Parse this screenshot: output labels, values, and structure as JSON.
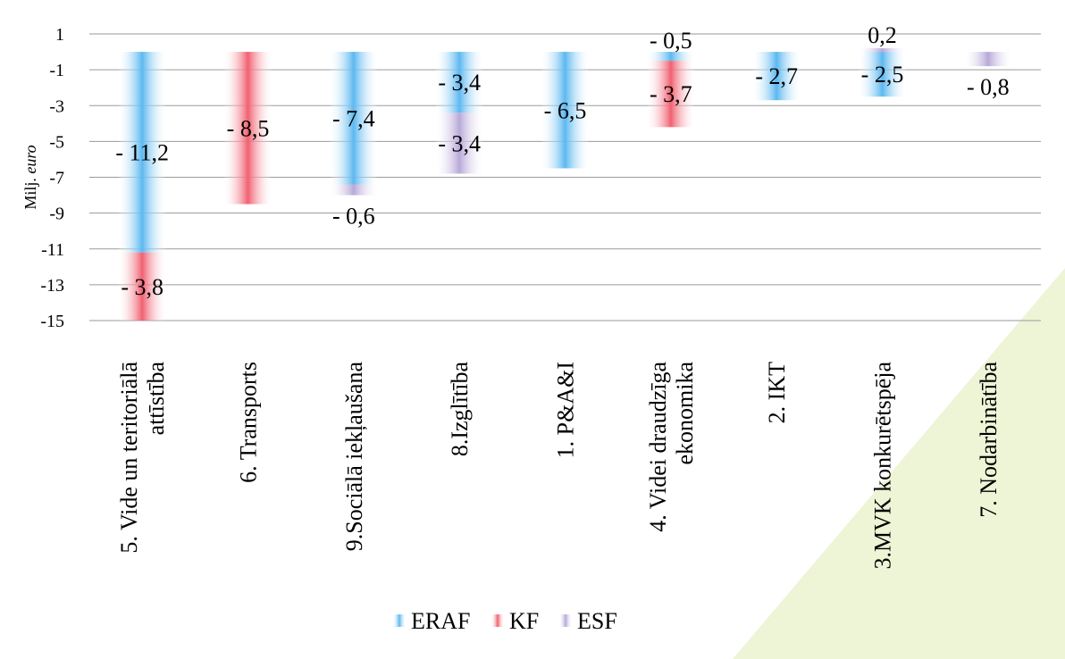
{
  "chart_data": {
    "type": "bar",
    "stacked": true,
    "title": "",
    "ylabel": "Milj.",
    "ylabel_italic": "euro",
    "ylim": [
      -15,
      1
    ],
    "yticks": [
      1,
      -1,
      -3,
      -5,
      -7,
      -9,
      -11,
      -13,
      -15
    ],
    "grid": true,
    "legend_position": "bottom",
    "categories": [
      [
        "5. Vide un teritoriālā",
        "attīstība"
      ],
      [
        "6. Transports"
      ],
      [
        "9.Sociālā iekļaušana"
      ],
      [
        "8.Izglītība"
      ],
      [
        "1. P&A&I"
      ],
      [
        "4. Videi draudzīga",
        "ekonomika"
      ],
      [
        "2. IKT"
      ],
      [
        "3.MVK konkurētspēja"
      ],
      [
        "7. Nodarbinātība"
      ]
    ],
    "series": [
      {
        "name": "ERAF",
        "color": "#5cb8f0",
        "values": [
          -11.2,
          0,
          -7.4,
          -3.4,
          -6.5,
          -0.5,
          -2.7,
          -2.5,
          0
        ]
      },
      {
        "name": "KF",
        "color": "#f06070",
        "values": [
          -3.8,
          -8.5,
          0,
          0,
          0,
          -3.7,
          0,
          0,
          0
        ]
      },
      {
        "name": "ESF",
        "color": "#b8a8d8",
        "values": [
          0,
          0,
          -0.6,
          -3.4,
          0,
          0,
          0,
          0.2,
          -0.8
        ]
      }
    ],
    "data_labels": [
      [
        "- 11,2",
        null,
        "- 7,4",
        "- 3,4",
        "- 6,5",
        "- 0,5",
        "- 2,7",
        "- 2,5",
        null
      ],
      [
        "- 3,8",
        "- 8,5",
        null,
        null,
        null,
        "- 3,7",
        null,
        null,
        null
      ],
      [
        null,
        null,
        "- 0,6",
        "- 3,4",
        null,
        null,
        null,
        "0,2",
        "- 0,8"
      ]
    ],
    "tick_labels": [
      "1",
      "-1",
      "-3",
      "-5",
      "-7",
      "-9",
      "-11",
      "-13",
      "-15"
    ]
  }
}
